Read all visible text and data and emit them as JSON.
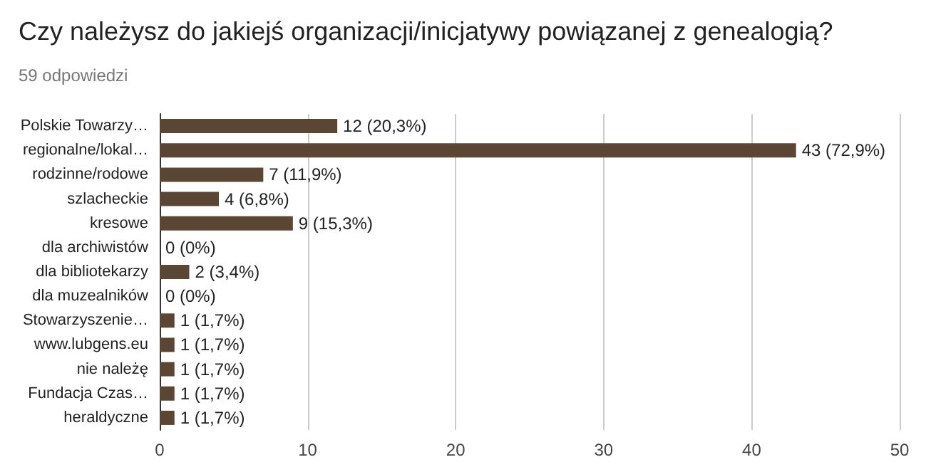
{
  "chart_data": {
    "type": "bar",
    "orientation": "horizontal",
    "title": "Czy należysz do jakiejś organizacji/inicjatywy powiązanej z genealogią?",
    "subtitle": "59 odpowiedzi",
    "categories": [
      "Polskie Towarzy…",
      "regionalne/lokal…",
      "rodzinne/rodowe",
      "szlacheckie",
      "kresowe",
      "dla archiwistów",
      "dla bibliotekarzy",
      "dla muzealników",
      "Stowarzyszenie…",
      "www.lubgens.eu",
      "nie należę",
      "Fundacja Czas…",
      "heraldyczne"
    ],
    "values": [
      12,
      43,
      7,
      4,
      9,
      0,
      2,
      0,
      1,
      1,
      1,
      1,
      1
    ],
    "value_labels": [
      "12 (20,3%)",
      "43 (72,9%)",
      "7 (11,9%)",
      "4 (6,8%)",
      "9 (15,3%)",
      "0 (0%)",
      "2 (3,4%)",
      "0 (0%)",
      "1 (1,7%)",
      "1 (1,7%)",
      "1 (1,7%)",
      "1 (1,7%)",
      "1 (1,7%)"
    ],
    "color": "#5a4632",
    "xlim": [
      0,
      50
    ],
    "xticks": [
      0,
      10,
      20,
      30,
      40,
      50
    ],
    "grid": "x"
  }
}
